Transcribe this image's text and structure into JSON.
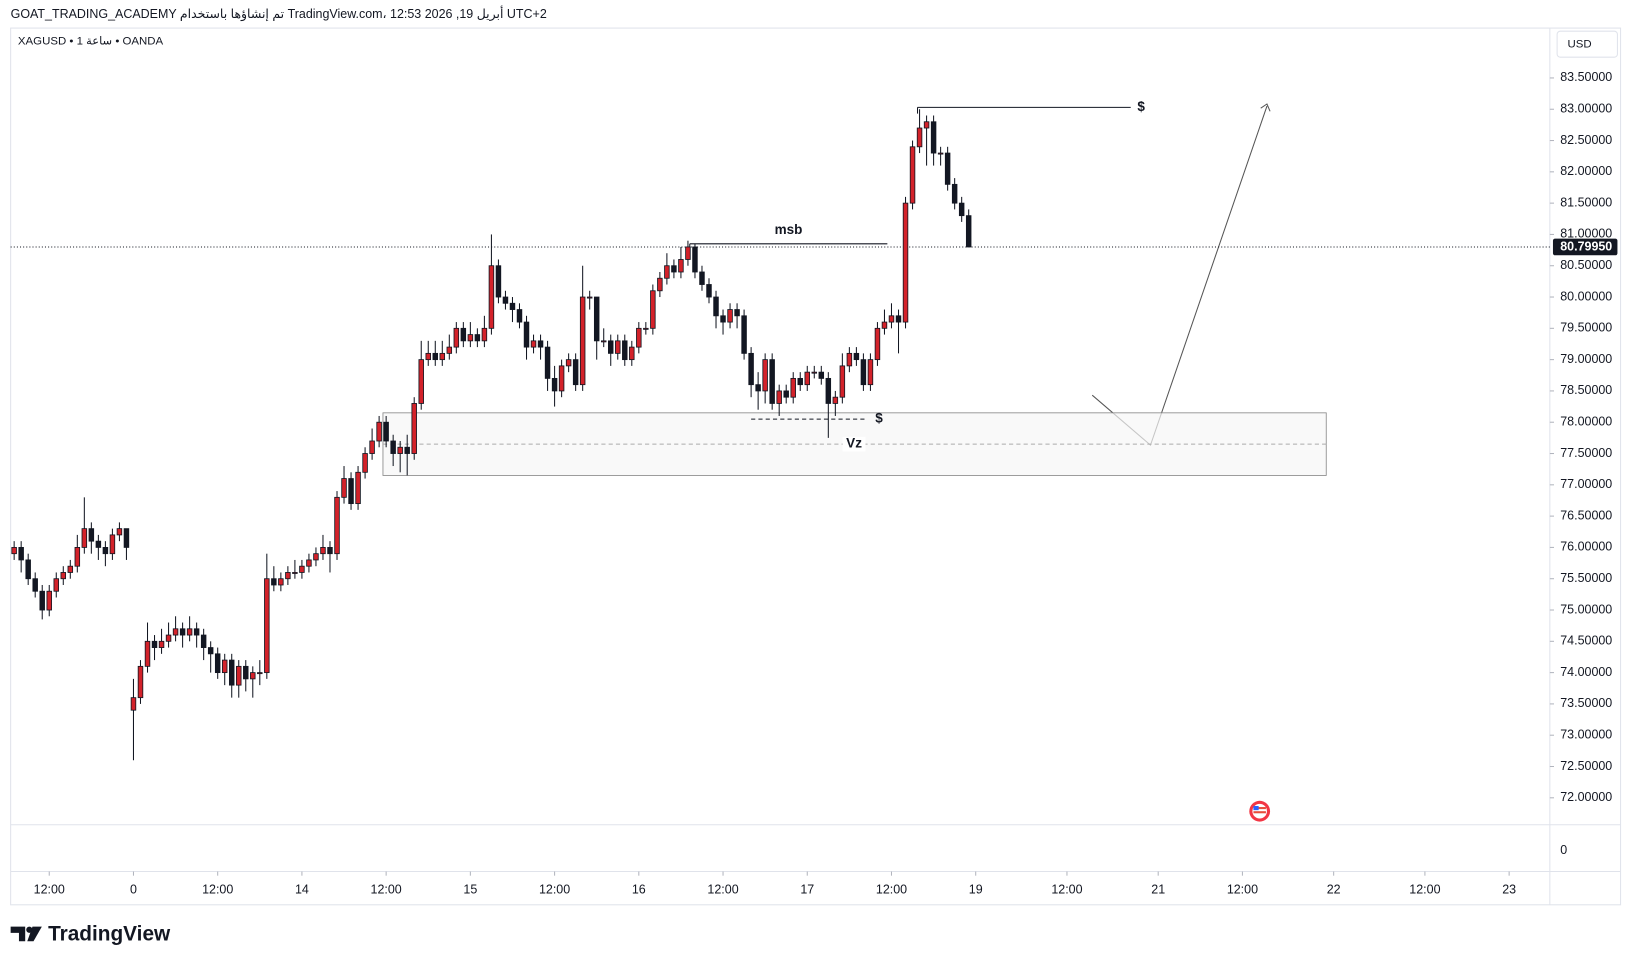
{
  "header": "GOAT_TRADING_ACADEMY تم إنشاؤها باستخدام TradingView.com، 12:53 2026 ,19 أبريل UTC+2",
  "symbol": "XAGUSD • 1 ساعة • OANDA",
  "currency": "USD",
  "volume_zero": "0",
  "brand": "TradingView",
  "chart_data": {
    "type": "candlestick",
    "up_color": "#d3222a",
    "down_color": "#131722",
    "xlim": [
      -17.5,
      201.8
    ],
    "ylim": [
      71.57,
      84.28
    ],
    "xticks": [
      {
        "value": -12,
        "label": "12:00"
      },
      0,
      {
        "value": 12,
        "label": "12:00"
      },
      {
        "value": 24,
        "label": "14"
      },
      {
        "value": 36,
        "label": "12:00"
      },
      {
        "value": 48,
        "label": "15"
      },
      {
        "value": 60,
        "label": "12:00"
      },
      {
        "value": 72,
        "label": "16"
      },
      {
        "value": 84,
        "label": "12:00"
      },
      {
        "value": 96,
        "label": "17"
      },
      {
        "value": 108,
        "label": "12:00"
      },
      {
        "value": 120,
        "label": "19"
      },
      {
        "value": 133,
        "label": "12:00"
      },
      {
        "value": 146,
        "label": "21"
      },
      {
        "value": 158,
        "label": "12:00"
      },
      {
        "value": 171,
        "label": "22"
      },
      {
        "value": 184,
        "label": "12:00"
      },
      {
        "value": 196,
        "label": "23"
      }
    ],
    "yticks": [
      {
        "value": 72.0,
        "label": "72.00000"
      },
      {
        "value": 72.5,
        "label": "72.50000"
      },
      {
        "value": 73.0,
        "label": "73.00000"
      },
      {
        "value": 73.5,
        "label": "73.50000"
      },
      {
        "value": 74.0,
        "label": "74.00000"
      },
      {
        "value": 74.5,
        "label": "74.50000"
      },
      {
        "value": 75.0,
        "label": "75.00000"
      },
      {
        "value": 75.5,
        "label": "75.50000"
      },
      {
        "value": 76.0,
        "label": "76.00000"
      },
      {
        "value": 76.5,
        "label": "76.50000"
      },
      {
        "value": 77.0,
        "label": "77.00000"
      },
      {
        "value": 77.5,
        "label": "77.50000"
      },
      {
        "value": 78.0,
        "label": "78.00000"
      },
      {
        "value": 78.5,
        "label": "78.50000"
      },
      {
        "value": 79.0,
        "label": "79.00000"
      },
      {
        "value": 79.5,
        "label": "79.50000"
      },
      {
        "value": 80.0,
        "label": "80.00000"
      },
      {
        "value": 80.5,
        "label": "80.50000"
      },
      {
        "value": 81.0,
        "label": "81.00000"
      },
      {
        "value": 81.5,
        "label": "81.50000"
      },
      {
        "value": 82.0,
        "label": "82.00000"
      },
      {
        "value": 82.5,
        "label": "82.50000"
      },
      {
        "value": 83.0,
        "label": "83.00000"
      },
      {
        "value": 83.5,
        "label": "83.50000"
      }
    ],
    "x": [
      -17,
      -16,
      -15,
      -14,
      -13,
      -12,
      -11,
      -10,
      -9,
      -8,
      -7,
      -6,
      -5,
      -4,
      -3,
      -2,
      -1,
      0,
      1,
      2,
      3,
      4,
      5,
      6,
      7,
      8,
      9,
      10,
      11,
      12,
      13,
      14,
      15,
      16,
      17,
      18,
      19,
      20,
      21,
      22,
      23,
      24,
      25,
      26,
      27,
      28,
      29,
      30,
      31,
      32,
      33,
      34,
      35,
      36,
      37,
      38,
      39,
      40,
      41,
      42,
      43,
      44,
      45,
      46,
      47,
      48,
      49,
      50,
      51,
      52,
      53,
      54,
      55,
      56,
      57,
      58,
      59,
      60,
      61,
      62,
      63,
      64,
      65,
      66,
      67,
      68,
      69,
      70,
      71,
      72,
      73,
      74,
      75,
      76,
      77,
      78,
      79,
      80,
      81,
      82,
      83,
      84,
      85,
      86,
      87,
      88,
      89,
      90,
      91,
      92,
      93,
      94,
      95,
      96,
      97,
      98,
      99,
      100,
      101,
      102,
      103,
      104,
      105,
      106,
      107,
      108,
      109,
      110,
      111,
      112,
      113,
      114,
      115,
      116,
      117,
      118,
      119
    ],
    "open": [
      75.9,
      76.0,
      75.8,
      75.5,
      75.3,
      75.0,
      75.3,
      75.5,
      75.6,
      75.7,
      76.0,
      76.3,
      76.1,
      76.0,
      75.9,
      76.2,
      76.3,
      73.4,
      73.6,
      74.1,
      74.5,
      74.4,
      74.5,
      74.6,
      74.7,
      74.6,
      74.7,
      74.6,
      74.4,
      74.3,
      74.0,
      74.2,
      73.8,
      74.1,
      73.9,
      74.0,
      74.0,
      75.5,
      75.4,
      75.5,
      75.6,
      75.6,
      75.7,
      75.8,
      75.9,
      76.0,
      75.9,
      76.8,
      77.1,
      76.7,
      77.2,
      77.5,
      77.7,
      78.0,
      77.7,
      77.5,
      77.6,
      77.5,
      78.3,
      79.0,
      79.1,
      79.0,
      79.1,
      79.2,
      79.5,
      79.3,
      79.4,
      79.3,
      79.5,
      80.5,
      80.0,
      79.9,
      79.8,
      79.6,
      79.2,
      79.3,
      79.2,
      78.7,
      78.5,
      78.9,
      79.0,
      78.6,
      80.0,
      80.0,
      79.3,
      79.3,
      79.1,
      79.3,
      79.0,
      79.2,
      79.5,
      79.5,
      80.1,
      80.3,
      80.5,
      80.4,
      80.6,
      80.8,
      80.4,
      80.2,
      80.0,
      79.7,
      79.6,
      79.8,
      79.7,
      79.1,
      78.6,
      78.5,
      79.0,
      78.3,
      78.5,
      78.4,
      78.7,
      78.6,
      78.8,
      78.8,
      78.7,
      78.3,
      78.4,
      78.9,
      79.1,
      79.0,
      78.6,
      79.0,
      79.5,
      79.6,
      79.7,
      79.6,
      81.5,
      82.4,
      82.7,
      82.8,
      82.3,
      82.3,
      81.8,
      81.5,
      81.3
    ],
    "high": [
      76.1,
      76.1,
      75.9,
      75.6,
      75.4,
      75.4,
      75.6,
      75.7,
      75.8,
      76.2,
      76.8,
      76.4,
      76.2,
      76.1,
      76.3,
      76.4,
      76.3,
      73.9,
      74.2,
      74.8,
      74.6,
      74.7,
      74.8,
      74.9,
      74.8,
      74.9,
      74.8,
      74.7,
      74.5,
      74.4,
      74.3,
      74.3,
      74.2,
      74.2,
      74.1,
      74.2,
      75.9,
      75.7,
      75.6,
      75.7,
      75.8,
      75.8,
      75.9,
      76.0,
      76.2,
      76.1,
      76.9,
      77.3,
      77.2,
      77.3,
      77.6,
      77.9,
      78.1,
      78.1,
      77.8,
      77.7,
      77.8,
      78.4,
      79.3,
      79.3,
      79.3,
      79.3,
      79.4,
      79.6,
      79.6,
      79.6,
      79.5,
      79.7,
      81.0,
      80.6,
      80.1,
      80.0,
      79.9,
      79.7,
      79.4,
      79.4,
      79.3,
      78.9,
      79.0,
      79.1,
      79.1,
      80.5,
      80.1,
      80.0,
      79.5,
      79.4,
      79.4,
      79.4,
      79.3,
      79.6,
      79.6,
      80.2,
      80.4,
      80.7,
      80.6,
      80.8,
      80.9,
      80.85,
      80.5,
      80.3,
      80.1,
      79.8,
      79.9,
      79.9,
      79.8,
      79.2,
      78.8,
      79.1,
      79.1,
      78.6,
      78.6,
      78.8,
      78.8,
      78.9,
      78.9,
      78.9,
      78.8,
      78.5,
      79.1,
      79.2,
      79.2,
      79.1,
      79.1,
      79.6,
      79.8,
      79.9,
      79.8,
      81.6,
      82.5,
      83.0,
      82.9,
      82.9,
      82.4,
      82.4,
      81.9,
      81.6,
      81.4
    ],
    "low": [
      75.8,
      75.6,
      75.4,
      75.2,
      74.85,
      74.9,
      75.2,
      75.4,
      75.5,
      75.6,
      75.9,
      75.9,
      75.8,
      75.7,
      75.8,
      76.1,
      75.8,
      72.6,
      73.5,
      74.0,
      74.2,
      74.3,
      74.4,
      74.5,
      74.4,
      74.5,
      74.4,
      74.2,
      74.0,
      73.9,
      73.8,
      73.6,
      73.6,
      73.7,
      73.6,
      73.8,
      73.9,
      75.3,
      75.3,
      75.4,
      75.5,
      75.5,
      75.6,
      75.7,
      75.8,
      75.6,
      75.8,
      76.7,
      76.6,
      76.6,
      77.1,
      77.4,
      77.6,
      77.6,
      77.3,
      77.2,
      77.15,
      77.4,
      78.2,
      78.9,
      78.9,
      78.9,
      79.0,
      79.1,
      79.2,
      79.2,
      79.2,
      79.2,
      79.4,
      79.9,
      79.8,
      79.6,
      79.5,
      79.0,
      79.1,
      79.0,
      78.5,
      78.25,
      78.4,
      78.8,
      78.5,
      78.5,
      79.8,
      79.0,
      79.2,
      78.9,
      79.0,
      78.9,
      78.9,
      79.1,
      79.4,
      79.4,
      80.0,
      80.2,
      80.3,
      80.3,
      80.5,
      80.3,
      80.1,
      79.9,
      79.5,
      79.4,
      79.5,
      79.5,
      79.0,
      78.4,
      78.2,
      78.3,
      78.2,
      78.1,
      78.3,
      78.3,
      78.5,
      78.5,
      78.7,
      78.6,
      77.75,
      78.1,
      78.3,
      78.8,
      78.9,
      78.5,
      78.5,
      78.9,
      79.4,
      79.5,
      79.1,
      79.5,
      81.4,
      82.3,
      82.1,
      82.1,
      82.1,
      81.7,
      81.4,
      81.2,
      80.8
    ],
    "close": [
      76.0,
      75.8,
      75.5,
      75.3,
      75.0,
      75.3,
      75.5,
      75.6,
      75.7,
      76.0,
      76.3,
      76.1,
      76.0,
      75.9,
      76.2,
      76.3,
      76.0,
      73.6,
      74.1,
      74.5,
      74.4,
      74.5,
      74.6,
      74.7,
      74.6,
      74.7,
      74.6,
      74.4,
      74.3,
      74.0,
      74.2,
      73.8,
      74.1,
      73.9,
      74.0,
      74.0,
      75.5,
      75.4,
      75.5,
      75.6,
      75.6,
      75.7,
      75.8,
      75.9,
      76.0,
      75.9,
      76.8,
      77.1,
      76.7,
      77.2,
      77.5,
      77.7,
      78.0,
      77.7,
      77.5,
      77.6,
      77.5,
      78.3,
      79.0,
      79.1,
      79.0,
      79.1,
      79.2,
      79.5,
      79.3,
      79.4,
      79.3,
      79.5,
      80.5,
      80.0,
      79.9,
      79.8,
      79.6,
      79.2,
      79.3,
      79.2,
      78.7,
      78.5,
      78.9,
      79.0,
      78.6,
      80.0,
      80.0,
      79.3,
      79.3,
      79.1,
      79.3,
      79.0,
      79.2,
      79.5,
      79.5,
      80.1,
      80.3,
      80.5,
      80.4,
      80.6,
      80.8,
      80.4,
      80.2,
      80.0,
      79.7,
      79.6,
      79.8,
      79.7,
      79.1,
      78.6,
      78.5,
      79.0,
      78.3,
      78.5,
      78.4,
      78.7,
      78.6,
      78.8,
      78.8,
      78.7,
      78.3,
      78.4,
      78.9,
      79.1,
      79.0,
      78.6,
      79.0,
      79.5,
      79.6,
      79.7,
      79.6,
      81.5,
      82.4,
      82.7,
      82.8,
      82.3,
      82.3,
      81.8,
      81.5,
      81.3,
      80.8
    ],
    "last_price": {
      "value": 80.7995,
      "label": "80.79950"
    },
    "levels": [
      {
        "value": 83.03,
        "label": "$"
      },
      {
        "value": 80.85,
        "label": "msb"
      },
      {
        "value": 78.05,
        "label": "$"
      }
    ],
    "zone": {
      "top": 78.15,
      "bottom": 77.15,
      "mid": 77.65,
      "label": "Vz"
    }
  }
}
